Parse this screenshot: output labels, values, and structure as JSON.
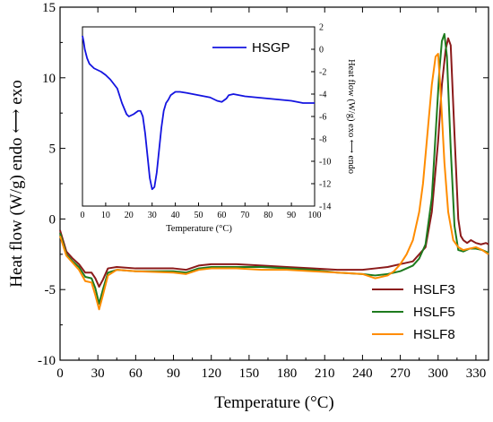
{
  "chart_data": [
    {
      "type": "line",
      "xlabel": "Temperature (°C)",
      "ylabel": "Heat flow (W/g)  endo ⟷ exo",
      "xlim": [
        0,
        340
      ],
      "ylim": [
        -10,
        15
      ],
      "xticks": [
        0,
        30,
        60,
        90,
        120,
        150,
        180,
        210,
        240,
        270,
        300,
        330
      ],
      "yticks": [
        -10,
        -5,
        0,
        5,
        10,
        15
      ],
      "legend_position": "bottom-right",
      "series": [
        {
          "name": "HSLF3",
          "color": "#8B1A1A",
          "x": [
            0,
            5,
            10,
            15,
            20,
            25,
            28,
            31,
            34,
            38,
            45,
            60,
            90,
            100,
            110,
            120,
            140,
            160,
            180,
            200,
            220,
            240,
            250,
            260,
            270,
            280,
            290,
            295,
            300,
            303,
            306,
            308,
            310,
            313,
            316,
            318,
            320,
            323,
            326,
            330,
            334,
            338,
            340
          ],
          "y": [
            -0.8,
            -2.3,
            -2.8,
            -3.2,
            -3.8,
            -3.8,
            -4.2,
            -4.8,
            -4.3,
            -3.5,
            -3.4,
            -3.5,
            -3.5,
            -3.6,
            -3.3,
            -3.2,
            -3.2,
            -3.3,
            -3.4,
            -3.5,
            -3.6,
            -3.6,
            -3.5,
            -3.4,
            -3.2,
            -3.0,
            -2.0,
            0.5,
            5.5,
            9.5,
            12.0,
            12.8,
            12.3,
            6.0,
            0.0,
            -1.2,
            -1.5,
            -1.7,
            -1.5,
            -1.7,
            -1.8,
            -1.7,
            -1.8
          ]
        },
        {
          "name": "HSLF5",
          "color": "#1E7B1E",
          "x": [
            0,
            5,
            10,
            15,
            20,
            25,
            28,
            31,
            34,
            38,
            45,
            60,
            90,
            100,
            110,
            120,
            140,
            160,
            180,
            200,
            220,
            240,
            250,
            260,
            270,
            280,
            285,
            290,
            295,
            298,
            301,
            303,
            305,
            307,
            310,
            313,
            316,
            320,
            325,
            330,
            335,
            340
          ],
          "y": [
            -1.0,
            -2.5,
            -3.0,
            -3.4,
            -4.1,
            -4.2,
            -4.9,
            -6.0,
            -5.0,
            -3.8,
            -3.6,
            -3.7,
            -3.7,
            -3.8,
            -3.5,
            -3.4,
            -3.4,
            -3.4,
            -3.5,
            -3.6,
            -3.8,
            -3.9,
            -4.0,
            -3.9,
            -3.7,
            -3.3,
            -2.8,
            -1.8,
            1.5,
            6.0,
            10.5,
            12.6,
            13.1,
            11.5,
            5.0,
            -0.5,
            -2.2,
            -2.3,
            -2.1,
            -2.1,
            -2.2,
            -2.4
          ]
        },
        {
          "name": "HSLF8",
          "color": "#FF8C00",
          "x": [
            0,
            5,
            10,
            15,
            20,
            25,
            28,
            31,
            34,
            38,
            45,
            60,
            90,
            100,
            110,
            120,
            140,
            160,
            180,
            200,
            220,
            240,
            250,
            260,
            265,
            270,
            275,
            280,
            285,
            288,
            292,
            295,
            298,
            300,
            302,
            305,
            308,
            312,
            316,
            320,
            325,
            330,
            335,
            340
          ],
          "y": [
            -1.2,
            -2.6,
            -3.1,
            -3.6,
            -4.4,
            -4.5,
            -5.4,
            -6.4,
            -5.4,
            -4.0,
            -3.6,
            -3.7,
            -3.8,
            -3.9,
            -3.6,
            -3.5,
            -3.5,
            -3.6,
            -3.6,
            -3.7,
            -3.8,
            -3.9,
            -4.2,
            -4.0,
            -3.7,
            -3.2,
            -2.5,
            -1.5,
            0.5,
            2.5,
            6.5,
            9.5,
            11.5,
            11.7,
            9.0,
            4.0,
            0.5,
            -1.5,
            -2.0,
            -2.2,
            -2.1,
            -2.0,
            -2.2,
            -2.5
          ]
        }
      ]
    },
    {
      "type": "line",
      "xlabel": "Temperature (°C)",
      "ylabel": "Heat flow (W/g) exo ⟷ endo",
      "xlim": [
        0,
        100
      ],
      "ylim": [
        -14,
        2
      ],
      "xticks": [
        0,
        10,
        20,
        30,
        40,
        50,
        60,
        70,
        80,
        90,
        100
      ],
      "yticks": [
        2,
        0,
        -2,
        -4,
        -6,
        -8,
        -10,
        -12,
        -14
      ],
      "y_axis_side": "right",
      "legend_position": "top-right",
      "series": [
        {
          "name": "HSGP",
          "color": "#1414E0",
          "x": [
            0,
            0.5,
            1,
            2,
            3,
            5,
            8,
            10,
            12,
            15,
            17,
            19,
            20,
            22,
            24,
            25,
            26,
            27,
            28,
            29,
            30,
            31,
            32,
            33,
            34,
            35,
            36,
            37,
            38,
            40,
            42,
            45,
            50,
            55,
            58,
            60,
            62,
            63,
            65,
            70,
            80,
            90,
            95,
            100
          ],
          "y": [
            1.2,
            0.7,
            0.0,
            -0.8,
            -1.3,
            -1.7,
            -2.0,
            -2.3,
            -2.7,
            -3.5,
            -4.8,
            -5.8,
            -6.0,
            -5.8,
            -5.5,
            -5.5,
            -6.0,
            -7.5,
            -9.5,
            -11.5,
            -12.5,
            -12.3,
            -11.0,
            -9.0,
            -7.0,
            -5.5,
            -4.8,
            -4.5,
            -4.1,
            -3.8,
            -3.8,
            -3.9,
            -4.1,
            -4.3,
            -4.6,
            -4.7,
            -4.4,
            -4.1,
            -4.0,
            -4.2,
            -4.4,
            -4.6,
            -4.8,
            -4.8
          ]
        }
      ]
    }
  ]
}
